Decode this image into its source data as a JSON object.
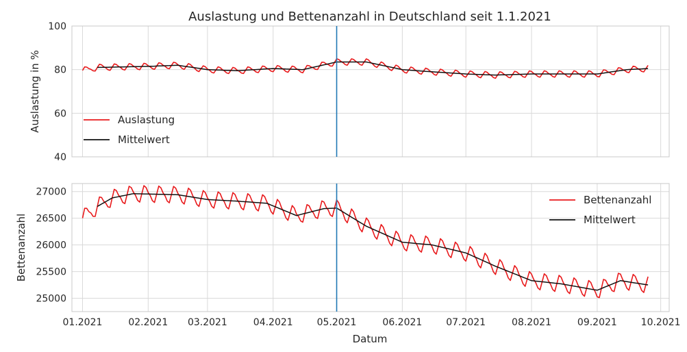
{
  "chart_data": {
    "title": "Auslastung und Bettenanzahl in Deutschland seit 1.1.2021",
    "xlabel": "Datum",
    "x_tick_labels": [
      "01.2021",
      "02.2021",
      "03.2021",
      "04.2021",
      "05.2021",
      "06.2021",
      "07.2021",
      "08.2021",
      "09.2021",
      "10.2021"
    ],
    "x_range": [
      "2020-12-27",
      "2021-10-05"
    ],
    "vertical_marker": {
      "date": "2021-05-01",
      "color": "#1f77b4"
    },
    "grid": true,
    "panels": [
      {
        "type": "line",
        "ylabel": "Auslastung in %",
        "ylim": [
          40,
          100
        ],
        "y_ticks": [
          40,
          60,
          80,
          100
        ],
        "legend_position": "lower-left",
        "series": [
          {
            "name": "Auslastung",
            "color": "#e8191b",
            "style": "weekly-oscillating",
            "trend_points": [
              [
                "2021-01-01",
                79.6
              ],
              [
                "2021-01-08",
                81
              ],
              [
                "2021-02-01",
                81.5
              ],
              [
                "2021-02-15",
                82
              ],
              [
                "2021-03-01",
                80
              ],
              [
                "2021-03-15",
                79.5
              ],
              [
                "2021-04-01",
                80.5
              ],
              [
                "2021-04-15",
                80
              ],
              [
                "2021-05-01",
                83.5
              ],
              [
                "2021-05-15",
                83.5
              ],
              [
                "2021-06-01",
                80
              ],
              [
                "2021-06-15",
                79
              ],
              [
                "2021-07-01",
                78
              ],
              [
                "2021-07-15",
                77.5
              ],
              [
                "2021-08-01",
                78
              ],
              [
                "2021-08-15",
                78
              ],
              [
                "2021-09-01",
                78
              ],
              [
                "2021-09-15",
                80
              ],
              [
                "2021-09-25",
                80.5
              ]
            ],
            "weekly_amplitude": 1.6
          },
          {
            "name": "Mittelwert",
            "color": "#111111",
            "points": [
              [
                "2021-01-08",
                81
              ],
              [
                "2021-02-01",
                81.5
              ],
              [
                "2021-02-15",
                82
              ],
              [
                "2021-03-01",
                80
              ],
              [
                "2021-03-15",
                79.5
              ],
              [
                "2021-04-01",
                80.5
              ],
              [
                "2021-04-15",
                80
              ],
              [
                "2021-05-01",
                83.5
              ],
              [
                "2021-05-15",
                83.5
              ],
              [
                "2021-06-01",
                80
              ],
              [
                "2021-06-15",
                79
              ],
              [
                "2021-07-01",
                78
              ],
              [
                "2021-07-15",
                77.5
              ],
              [
                "2021-08-01",
                78
              ],
              [
                "2021-08-15",
                78
              ],
              [
                "2021-09-01",
                78
              ],
              [
                "2021-09-15",
                80
              ],
              [
                "2021-09-25",
                80.5
              ]
            ]
          }
        ]
      },
      {
        "type": "line",
        "ylabel": "Bettenanzahl",
        "ylim": [
          24750,
          27150
        ],
        "y_ticks": [
          25000,
          25500,
          26000,
          26500,
          27000
        ],
        "legend_position": "top-right",
        "series": [
          {
            "name": "Bettenanzahl",
            "color": "#e8191b",
            "style": "weekly-oscillating",
            "trend_points": [
              [
                "2021-01-01",
                26500
              ],
              [
                "2021-01-08",
                26720
              ],
              [
                "2021-01-15",
                26880
              ],
              [
                "2021-01-25",
                26960
              ],
              [
                "2021-02-15",
                26940
              ],
              [
                "2021-03-01",
                26850
              ],
              [
                "2021-03-15",
                26820
              ],
              [
                "2021-03-29",
                26780
              ],
              [
                "2021-04-12",
                26550
              ],
              [
                "2021-04-25",
                26680
              ],
              [
                "2021-05-01",
                26690
              ],
              [
                "2021-05-15",
                26350
              ],
              [
                "2021-06-01",
                26050
              ],
              [
                "2021-06-15",
                26000
              ],
              [
                "2021-07-01",
                25850
              ],
              [
                "2021-07-15",
                25600
              ],
              [
                "2021-08-01",
                25330
              ],
              [
                "2021-08-15",
                25270
              ],
              [
                "2021-09-01",
                25150
              ],
              [
                "2021-09-12",
                25330
              ],
              [
                "2021-09-25",
                25250
              ]
            ],
            "weekly_amplitude": 170
          },
          {
            "name": "Mittelwert",
            "color": "#111111",
            "points": [
              [
                "2021-01-08",
                26720
              ],
              [
                "2021-01-15",
                26880
              ],
              [
                "2021-01-25",
                26960
              ],
              [
                "2021-02-15",
                26940
              ],
              [
                "2021-03-01",
                26850
              ],
              [
                "2021-03-15",
                26820
              ],
              [
                "2021-03-29",
                26780
              ],
              [
                "2021-04-12",
                26550
              ],
              [
                "2021-04-25",
                26680
              ],
              [
                "2021-05-01",
                26690
              ],
              [
                "2021-05-15",
                26350
              ],
              [
                "2021-06-01",
                26050
              ],
              [
                "2021-06-15",
                26000
              ],
              [
                "2021-07-01",
                25850
              ],
              [
                "2021-07-15",
                25600
              ],
              [
                "2021-08-01",
                25330
              ],
              [
                "2021-08-15",
                25270
              ],
              [
                "2021-09-01",
                25150
              ],
              [
                "2021-09-12",
                25330
              ],
              [
                "2021-09-25",
                25250
              ]
            ]
          }
        ]
      }
    ]
  }
}
